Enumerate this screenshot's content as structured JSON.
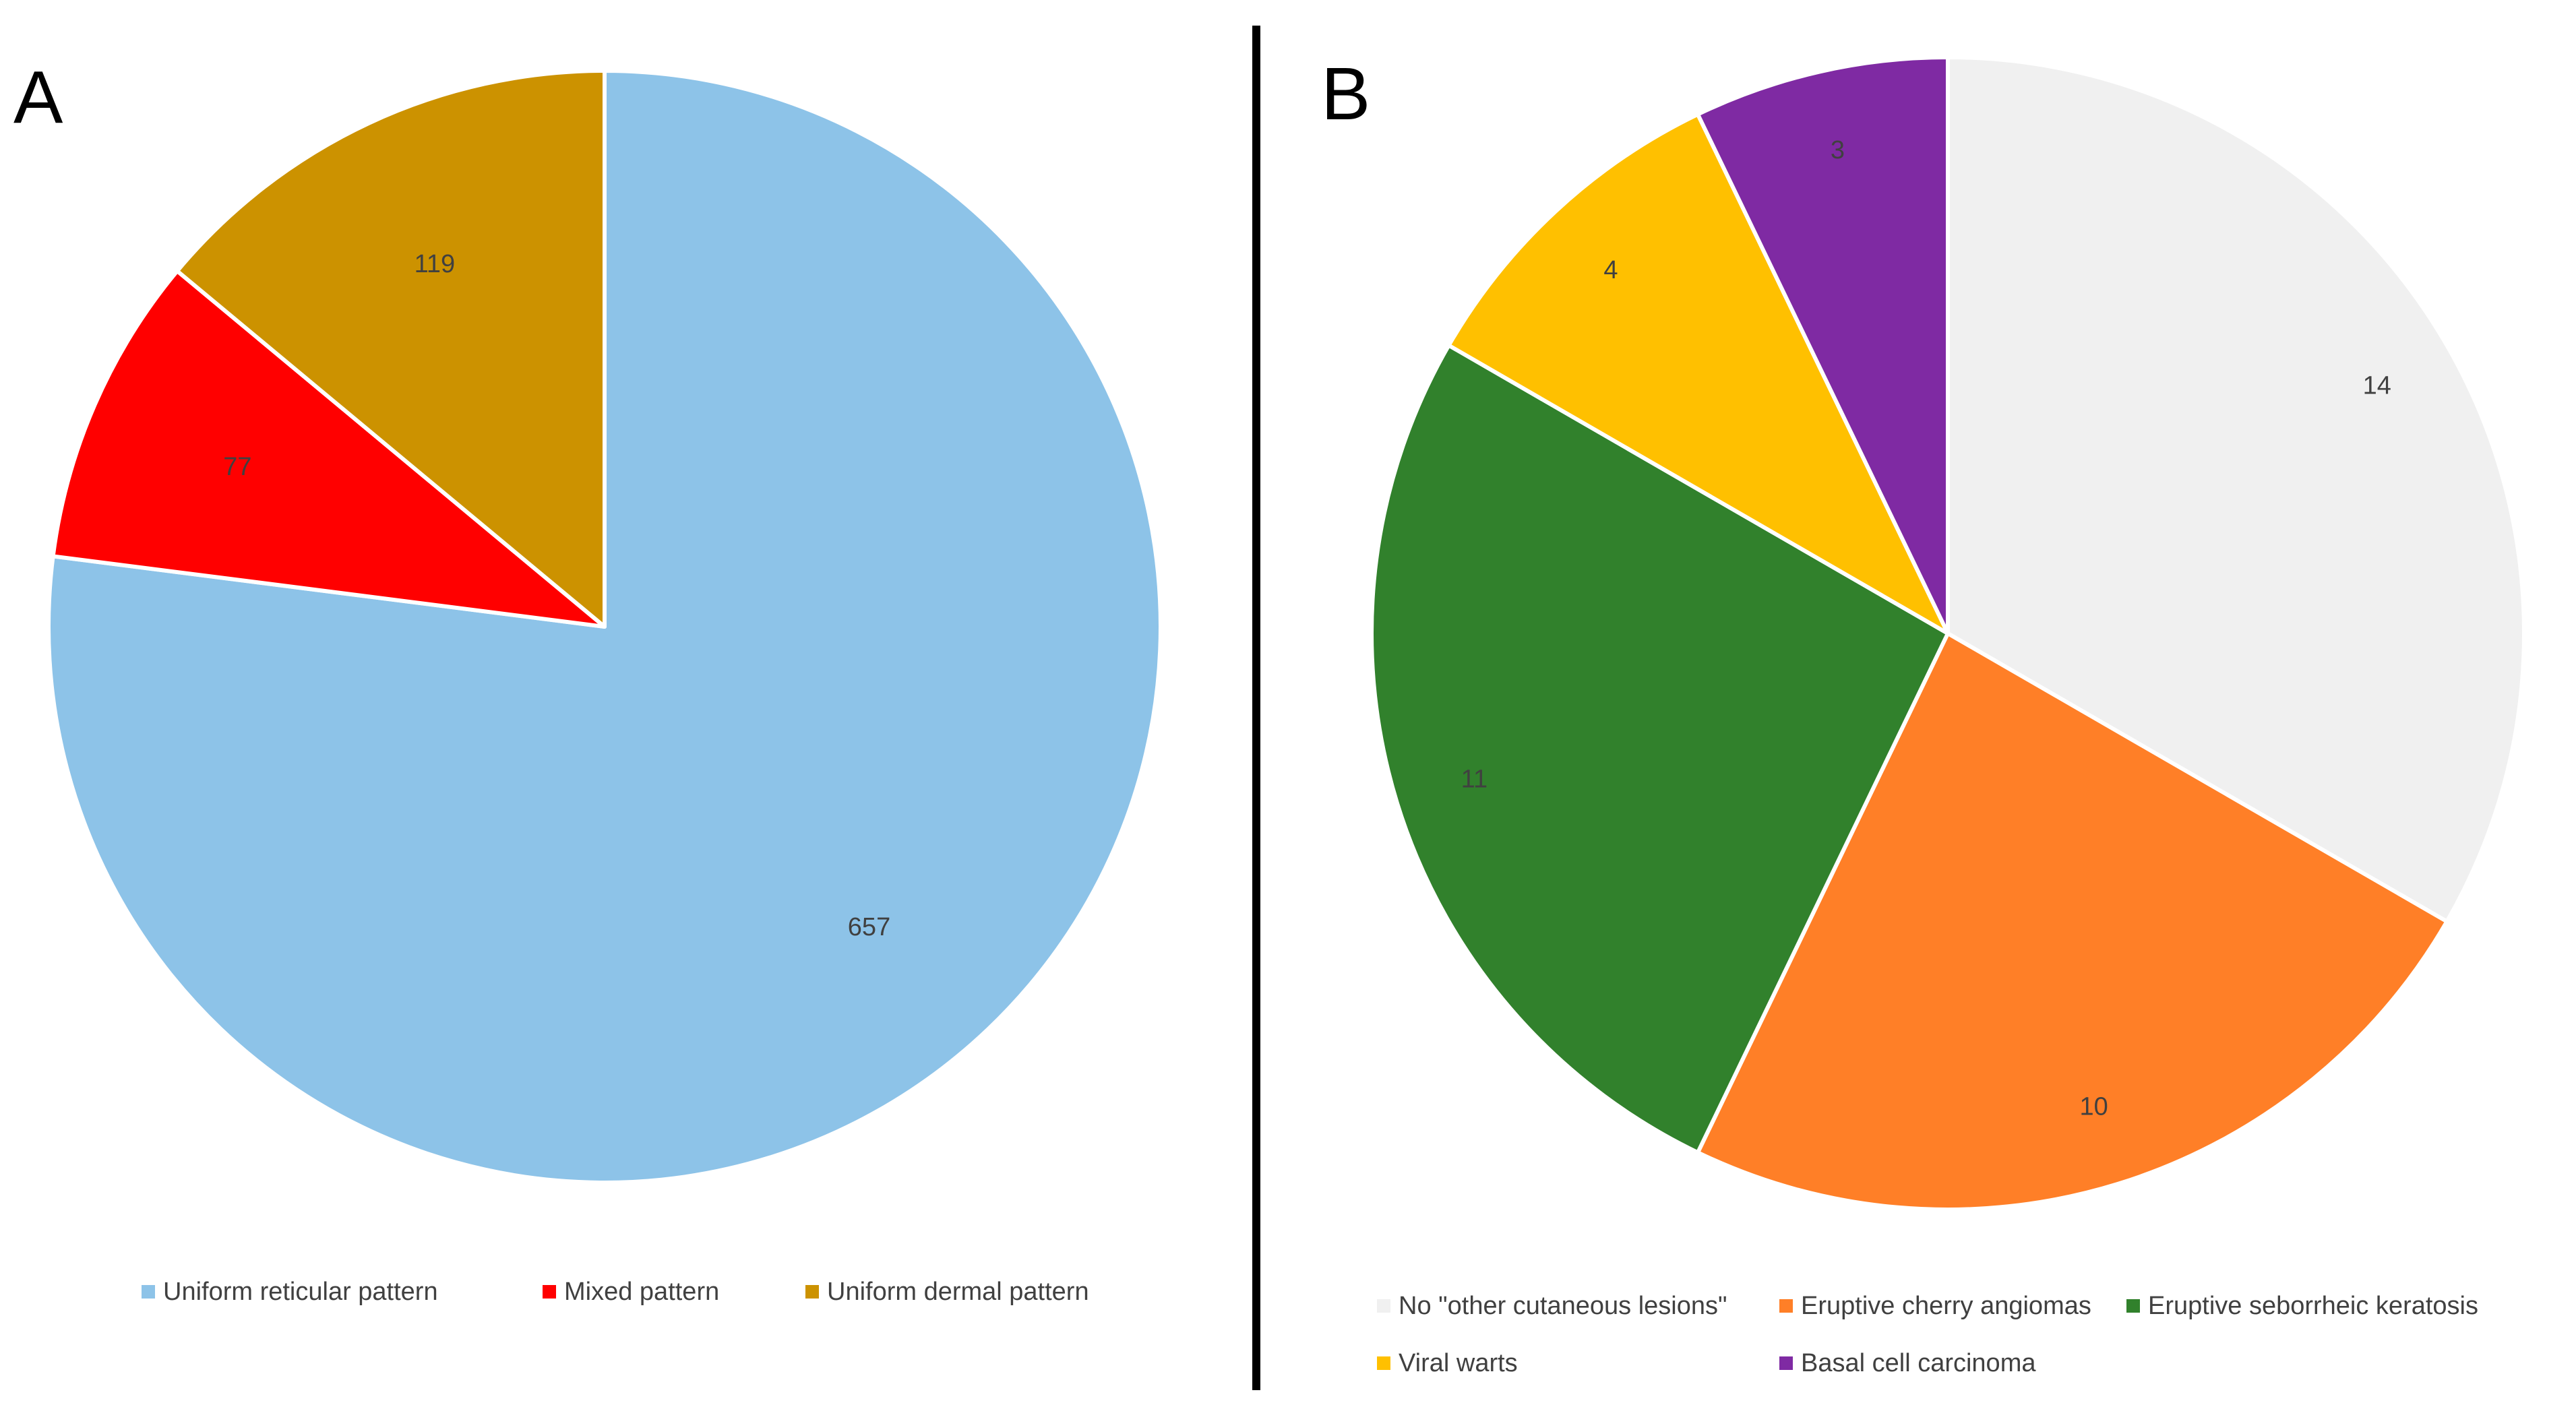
{
  "chart_data": [
    {
      "panel_label": "A",
      "type": "pie",
      "title": "",
      "categories": [
        "Uniform reticular pattern",
        "Mixed pattern",
        "Uniform dermal pattern"
      ],
      "values": [
        657,
        77,
        119
      ],
      "colors": [
        "#8DC3E8",
        "#FF0000",
        "#CC9200"
      ],
      "start": "12 o'clock",
      "direction": "clockwise",
      "data_labels": true,
      "legend": "bottom"
    },
    {
      "panel_label": "B",
      "type": "pie",
      "title": "",
      "categories": [
        "No \"other cutaneous lesions\"",
        "Eruptive cherry angiomas",
        "Eruptive seborrheic keratosis",
        "Viral warts",
        "Basal cell carcinoma"
      ],
      "values": [
        14,
        10,
        11,
        4,
        3
      ],
      "colors": [
        "#F0F0F0",
        "#FF7F27",
        "#31812C",
        "#FFC000",
        "#7F2AA3"
      ],
      "start": "12 o'clock",
      "direction": "clockwise",
      "data_labels": true,
      "legend": "bottom"
    }
  ]
}
